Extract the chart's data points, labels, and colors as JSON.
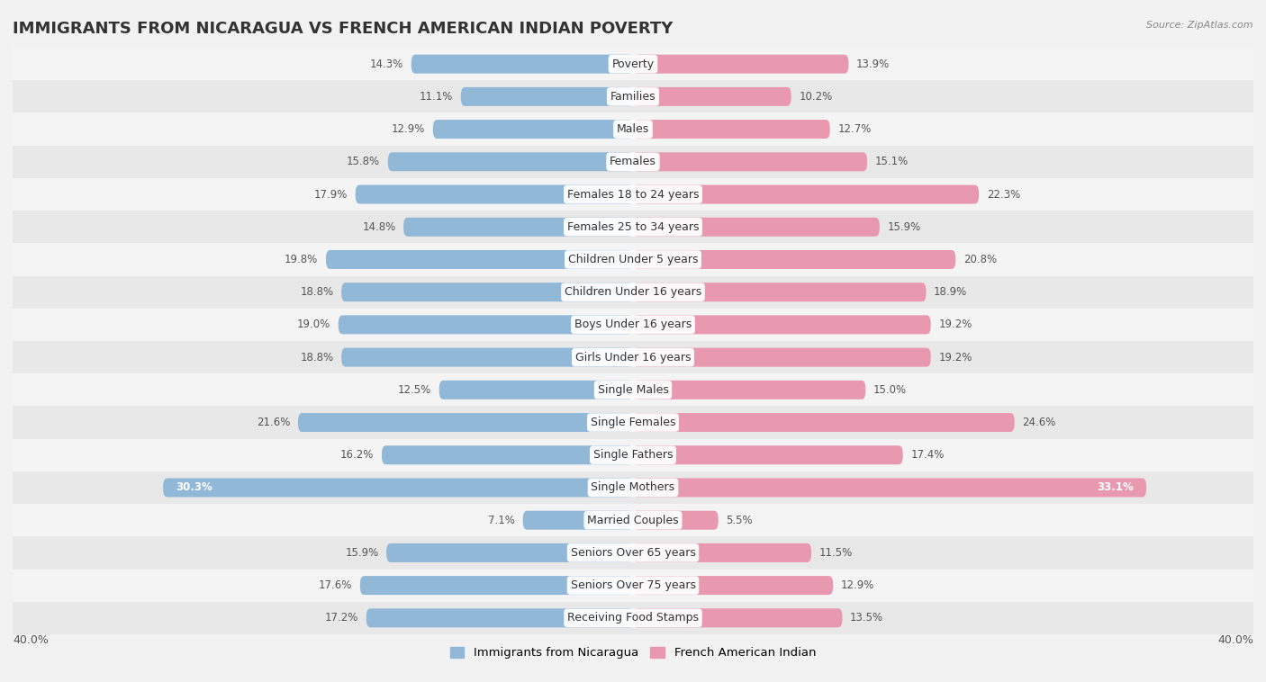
{
  "title": "IMMIGRANTS FROM NICARAGUA VS FRENCH AMERICAN INDIAN POVERTY",
  "source": "Source: ZipAtlas.com",
  "categories": [
    "Poverty",
    "Families",
    "Males",
    "Females",
    "Females 18 to 24 years",
    "Females 25 to 34 years",
    "Children Under 5 years",
    "Children Under 16 years",
    "Boys Under 16 years",
    "Girls Under 16 years",
    "Single Males",
    "Single Females",
    "Single Fathers",
    "Single Mothers",
    "Married Couples",
    "Seniors Over 65 years",
    "Seniors Over 75 years",
    "Receiving Food Stamps"
  ],
  "left_values": [
    14.3,
    11.1,
    12.9,
    15.8,
    17.9,
    14.8,
    19.8,
    18.8,
    19.0,
    18.8,
    12.5,
    21.6,
    16.2,
    30.3,
    7.1,
    15.9,
    17.6,
    17.2
  ],
  "right_values": [
    13.9,
    10.2,
    12.7,
    15.1,
    22.3,
    15.9,
    20.8,
    18.9,
    19.2,
    19.2,
    15.0,
    24.6,
    17.4,
    33.1,
    5.5,
    11.5,
    12.9,
    13.5
  ],
  "left_color": "#92b8d8",
  "right_color": "#e899b0",
  "left_label": "Immigrants from Nicaragua",
  "right_label": "French American Indian",
  "axis_max": 40.0,
  "row_colors": [
    "#f4f4f4",
    "#e8e8e8"
  ],
  "title_fontsize": 13,
  "cat_fontsize": 9,
  "value_fontsize": 8.5,
  "bar_height": 0.58,
  "white_label_threshold": 25
}
